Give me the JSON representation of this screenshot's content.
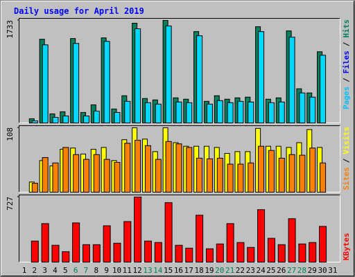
{
  "chart_data": {
    "type": "bar",
    "title": "Daily usage for April 2019",
    "categories": [
      "1",
      "2",
      "3",
      "4",
      "5",
      "6",
      "7",
      "8",
      "9",
      "10",
      "11",
      "12",
      "13",
      "14",
      "15",
      "16",
      "17",
      "18",
      "19",
      "20",
      "21",
      "22",
      "23",
      "24",
      "25",
      "26",
      "27",
      "28",
      "29",
      "30",
      "31"
    ],
    "category_colors": [
      "#000000",
      "#000000",
      "#000000",
      "#000000",
      "#000000",
      "#00805c",
      "#00805c",
      "#000000",
      "#000000",
      "#000000",
      "#000000",
      "#000000",
      "#00805c",
      "#00805c",
      "#000000",
      "#000000",
      "#000000",
      "#000000",
      "#000000",
      "#00805c",
      "#00805c",
      "#000000",
      "#000000",
      "#000000",
      "#000000",
      "#000000",
      "#00805c",
      "#00805c",
      "#000000",
      "#000000",
      "#000000"
    ],
    "legend_separator": "/",
    "panels": [
      {
        "ylim": [
          0,
          1733
        ],
        "yticks": [
          1733
        ],
        "legend_corner": "top",
        "legend": [
          {
            "name": "Pages",
            "color": "#00c0ff"
          },
          {
            "name": "Files",
            "color": "#0000ff"
          },
          {
            "name": "Hits",
            "color": "#00805c"
          }
        ],
        "series": [
          {
            "legend": 2,
            "color": "#00805c",
            "values": [
              0,
              71,
              1415,
              153,
              189,
              1427,
              177,
              306,
              1438,
              236,
              460,
              1686,
              413,
              389,
              1733,
              424,
              401,
              1544,
              365,
              460,
              401,
              424,
              436,
              1627,
              401,
              424,
              1556,
              578,
              507,
              1203,
              0
            ]
          },
          {
            "legend": 0,
            "color": "#00d8ff",
            "values": [
              0,
              35,
              1320,
              94,
              118,
              1344,
              118,
              200,
              1379,
              177,
              365,
              1592,
              342,
              318,
              1639,
              354,
              342,
              1474,
              318,
              377,
              342,
              365,
              354,
              1544,
              342,
              354,
              1450,
              507,
              436,
              1144,
              0
            ]
          }
        ]
      },
      {
        "ylim": [
          0,
          108
        ],
        "yticks": [
          108
        ],
        "legend_corner": "top",
        "legend": [
          {
            "name": "Sites",
            "color": "#ff8000"
          },
          {
            "name": "Visits",
            "color": "#ffff00"
          }
        ],
        "series": [
          {
            "legend": 1,
            "color": "#ffff00",
            "values": [
              0,
              17,
              53,
              44,
              72,
              74,
              64,
              72,
              75,
              53,
              88,
              108,
              89,
              68,
              108,
              83,
              77,
              77,
              77,
              75,
              65,
              68,
              68,
              107,
              77,
              77,
              75,
              83,
              105,
              75,
              0
            ]
          },
          {
            "legend": 0,
            "color": "#ff8000",
            "values": [
              0,
              15,
              58,
              49,
              75,
              63,
              55,
              63,
              55,
              50,
              82,
              87,
              78,
              55,
              85,
              81,
              75,
              57,
              56,
              57,
              47,
              47,
              49,
              77,
              70,
              57,
              63,
              62,
              74,
              49,
              0
            ]
          }
        ]
      },
      {
        "ylim": [
          0,
          727
        ],
        "yticks": [
          727
        ],
        "legend_corner": "bottom",
        "legend": [
          {
            "name": "KBytes",
            "color": "#ff0000"
          }
        ],
        "series": [
          {
            "legend": 0,
            "color": "#ff0000",
            "values": [
              0,
              235,
              430,
              188,
              117,
              438,
              195,
              195,
              406,
              211,
              453,
              727,
              235,
              219,
              664,
              188,
              156,
              524,
              149,
              203,
              430,
              219,
              164,
              586,
              266,
              195,
              485,
              203,
              219,
              399,
              0
            ]
          }
        ]
      }
    ]
  }
}
